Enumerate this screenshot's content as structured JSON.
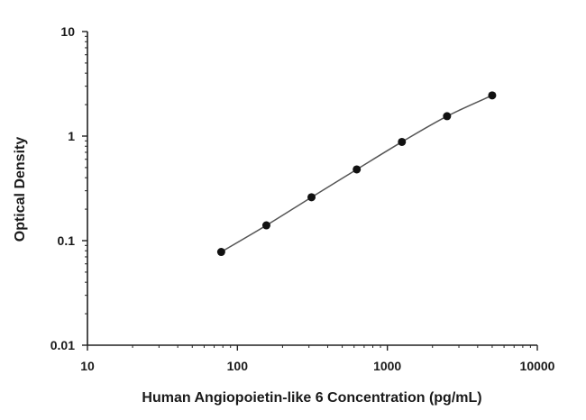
{
  "chart_data": {
    "type": "scatter",
    "title": "",
    "xlabel": "Human Angiopoietin-like 6 Concentration (pg/mL)",
    "ylabel": "Optical Density",
    "xscale": "log",
    "yscale": "log",
    "xlim": [
      10,
      10000
    ],
    "ylim": [
      0.01,
      10
    ],
    "xticks": [
      10,
      100,
      1000,
      10000
    ],
    "xtick_labels": [
      "10",
      "100",
      "1000",
      "10000"
    ],
    "yticks": [
      0.01,
      0.1,
      1,
      10
    ],
    "ytick_labels": [
      "0.01",
      "0.1",
      "1",
      "10"
    ],
    "grid": false,
    "legend": "none",
    "fit_line": true,
    "series": [
      {
        "x": [
          78,
          156,
          312,
          625,
          1250,
          2500,
          5000
        ],
        "y": [
          0.078,
          0.14,
          0.26,
          0.48,
          0.88,
          1.55,
          2.45
        ],
        "color": "#111111",
        "line_color": "#555555"
      }
    ]
  }
}
